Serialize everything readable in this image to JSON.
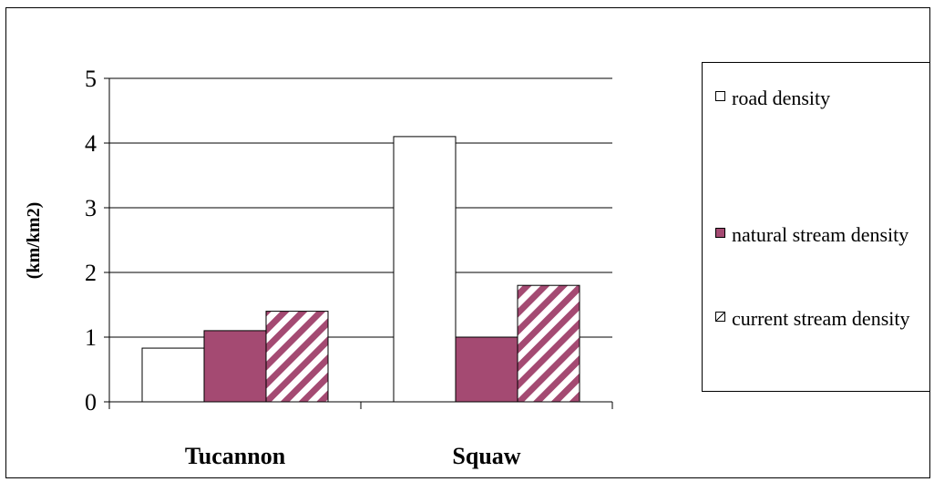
{
  "chart_data": {
    "type": "bar",
    "title": "",
    "xlabel": "",
    "ylabel": "(km/km2)",
    "categories": [
      "Tucannon",
      "Squaw"
    ],
    "series": [
      {
        "name": "road density",
        "values": [
          0.83,
          4.1
        ],
        "color": "#ffffff",
        "pattern": "solid"
      },
      {
        "name": "natural stream density",
        "values": [
          1.1,
          1.0
        ],
        "color": "#a44a72",
        "pattern": "solid"
      },
      {
        "name": "current stream density",
        "values": [
          1.4,
          1.8
        ],
        "color": "#a44a72",
        "pattern": "diagonal-stripes"
      }
    ],
    "ylim": [
      0,
      5
    ],
    "yticks": [
      "0",
      "1",
      "2",
      "3",
      "4",
      "5"
    ],
    "grid": true,
    "legend_position": "right"
  }
}
